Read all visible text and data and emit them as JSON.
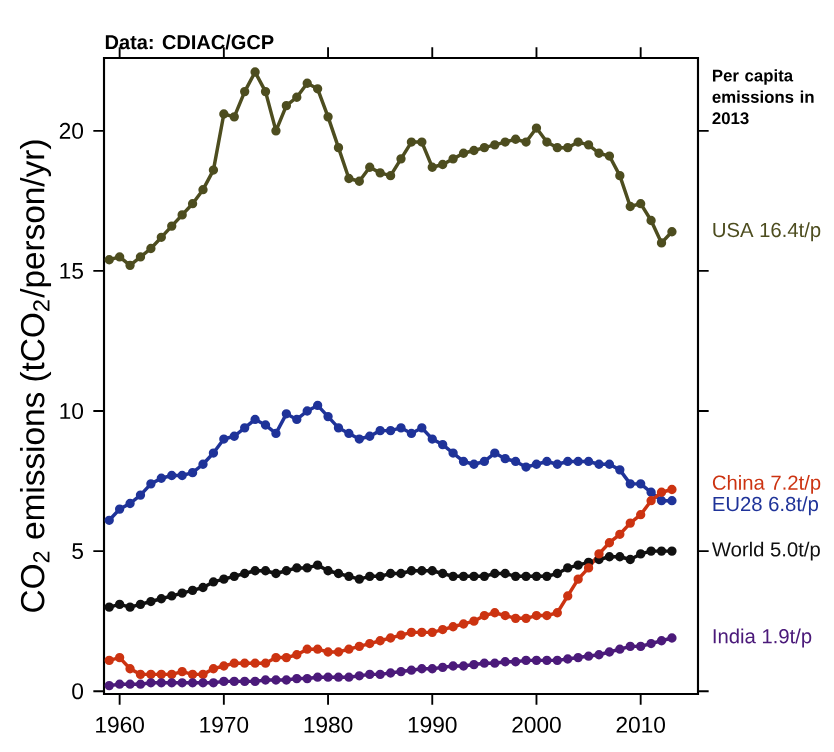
{
  "chart_data": {
    "type": "line",
    "x": [
      1959,
      1960,
      1961,
      1962,
      1963,
      1964,
      1965,
      1966,
      1967,
      1968,
      1969,
      1970,
      1971,
      1972,
      1973,
      1974,
      1975,
      1976,
      1977,
      1978,
      1979,
      1980,
      1981,
      1982,
      1983,
      1984,
      1985,
      1986,
      1987,
      1988,
      1989,
      1990,
      1991,
      1992,
      1993,
      1994,
      1995,
      1996,
      1997,
      1998,
      1999,
      2000,
      2001,
      2002,
      2003,
      2004,
      2005,
      2006,
      2007,
      2008,
      2009,
      2010,
      2011,
      2012,
      2013
    ],
    "series": [
      {
        "name": "USA 16.4t/p",
        "color": "#4d4d1f",
        "values": [
          15.4,
          15.5,
          15.2,
          15.5,
          15.8,
          16.2,
          16.6,
          17.0,
          17.4,
          17.9,
          18.6,
          20.6,
          20.5,
          21.4,
          22.1,
          21.4,
          20.0,
          20.9,
          21.2,
          21.7,
          21.5,
          20.5,
          19.4,
          18.3,
          18.2,
          18.7,
          18.5,
          18.4,
          19.0,
          19.6,
          19.6,
          18.7,
          18.8,
          19.0,
          19.2,
          19.3,
          19.4,
          19.5,
          19.6,
          19.7,
          19.6,
          20.1,
          19.6,
          19.4,
          19.4,
          19.6,
          19.5,
          19.2,
          19.1,
          18.4,
          17.3,
          17.4,
          16.8,
          16.0,
          16.4
        ]
      },
      {
        "name": "EU28 6.8t/p",
        "color": "#1f3399",
        "values": [
          6.1,
          6.5,
          6.7,
          7.0,
          7.4,
          7.6,
          7.7,
          7.7,
          7.8,
          8.1,
          8.5,
          9.0,
          9.1,
          9.4,
          9.7,
          9.5,
          9.2,
          9.9,
          9.7,
          10.0,
          10.2,
          9.8,
          9.4,
          9.2,
          9.0,
          9.1,
          9.3,
          9.3,
          9.4,
          9.2,
          9.4,
          9.0,
          8.8,
          8.5,
          8.2,
          8.1,
          8.2,
          8.5,
          8.3,
          8.2,
          8.0,
          8.1,
          8.2,
          8.1,
          8.2,
          8.2,
          8.2,
          8.1,
          8.1,
          7.9,
          7.4,
          7.4,
          7.1,
          6.8,
          6.8
        ]
      },
      {
        "name": "World 5.0t/p",
        "color": "#111111",
        "values": [
          3.0,
          3.1,
          3.0,
          3.1,
          3.2,
          3.3,
          3.4,
          3.5,
          3.6,
          3.7,
          3.9,
          4.0,
          4.1,
          4.2,
          4.3,
          4.3,
          4.2,
          4.3,
          4.4,
          4.4,
          4.5,
          4.3,
          4.2,
          4.1,
          4.0,
          4.1,
          4.1,
          4.2,
          4.2,
          4.3,
          4.3,
          4.3,
          4.2,
          4.1,
          4.1,
          4.1,
          4.1,
          4.2,
          4.2,
          4.1,
          4.1,
          4.1,
          4.1,
          4.2,
          4.4,
          4.5,
          4.6,
          4.7,
          4.8,
          4.8,
          4.7,
          4.9,
          5.0,
          5.0,
          5.0
        ]
      },
      {
        "name": "China 7.2t/p",
        "color": "#cc3311",
        "values": [
          1.1,
          1.2,
          0.8,
          0.6,
          0.6,
          0.6,
          0.6,
          0.7,
          0.6,
          0.6,
          0.8,
          0.9,
          1.0,
          1.0,
          1.0,
          1.0,
          1.2,
          1.2,
          1.3,
          1.5,
          1.5,
          1.4,
          1.4,
          1.5,
          1.6,
          1.7,
          1.8,
          1.9,
          2.0,
          2.1,
          2.1,
          2.1,
          2.2,
          2.3,
          2.4,
          2.5,
          2.7,
          2.8,
          2.7,
          2.6,
          2.6,
          2.7,
          2.7,
          2.8,
          3.4,
          4.0,
          4.4,
          4.9,
          5.3,
          5.6,
          6.0,
          6.3,
          6.8,
          7.1,
          7.2
        ]
      },
      {
        "name": "India 1.9t/p",
        "color": "#4b1a7a",
        "values": [
          0.2,
          0.25,
          0.25,
          0.25,
          0.3,
          0.3,
          0.3,
          0.3,
          0.3,
          0.3,
          0.3,
          0.35,
          0.35,
          0.35,
          0.35,
          0.4,
          0.4,
          0.4,
          0.45,
          0.45,
          0.5,
          0.5,
          0.5,
          0.5,
          0.55,
          0.6,
          0.6,
          0.65,
          0.7,
          0.75,
          0.8,
          0.8,
          0.85,
          0.9,
          0.9,
          0.95,
          1.0,
          1.0,
          1.05,
          1.05,
          1.1,
          1.1,
          1.1,
          1.1,
          1.15,
          1.2,
          1.25,
          1.3,
          1.4,
          1.5,
          1.6,
          1.6,
          1.7,
          1.8,
          1.9
        ]
      }
    ],
    "xlim": [
      1958.5,
      2015.5
    ],
    "ylim": [
      -0.1,
      22.6
    ],
    "xticks": [
      1960,
      1970,
      1980,
      1990,
      2000,
      2010
    ],
    "yticks": [
      0,
      5,
      10,
      15,
      20
    ],
    "ylabel": "CO$_{2}$ emissions (tCO$_{2}$/person/yr)",
    "annotations": [
      "Data: CDIAC/GCP",
      "Per capita emissions in 2013"
    ],
    "marker": "circle",
    "line_style": "solid"
  }
}
